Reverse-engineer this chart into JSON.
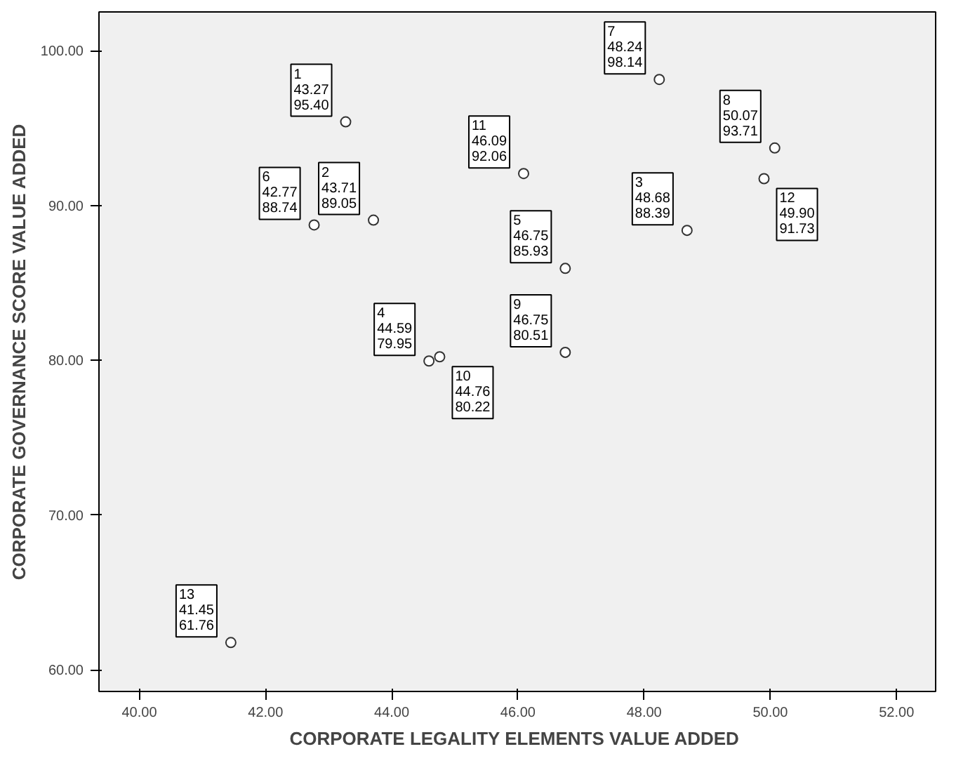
{
  "chart_data": {
    "type": "scatter",
    "xlabel": "CORPORATE LEGALITY  ELEMENTS VALUE ADDED",
    "ylabel": "CORPORATE GOVERNANCE SCORE VALUE ADDED",
    "x": [
      43.27,
      43.71,
      48.68,
      44.59,
      46.75,
      42.77,
      48.24,
      50.07,
      46.75,
      44.76,
      46.09,
      49.9,
      41.45
    ],
    "values": [
      95.4,
      89.05,
      88.39,
      79.95,
      85.93,
      88.74,
      98.14,
      93.71,
      80.51,
      80.22,
      92.06,
      91.73,
      61.76
    ],
    "value_labels": [
      "1\n43.27\n95.40",
      "2\n43.71\n89.05",
      "3\n48.68\n88.39",
      "4\n44.59\n79.95",
      "5\n46.75\n85.93",
      "6\n42.77\n88.74",
      "7\n48.24\n98.14",
      "8\n50.07\n93.71",
      "9\n46.75\n80.51",
      "10\n44.76\n80.22",
      "11\n46.09\n92.06",
      "12\n49.90\n91.73",
      "13\n41.45\n61.76"
    ],
    "color": "#333333",
    "marker": "circle",
    "grid": false,
    "xlim": [
      39.36,
      52.62
    ],
    "ylim": [
      58.6,
      102.5
    ],
    "xticks": [
      {
        "value": 40,
        "label": "40.00"
      },
      {
        "value": 42,
        "label": "42.00"
      },
      {
        "value": 44,
        "label": "44.00"
      },
      {
        "value": 46,
        "label": "46.00"
      },
      {
        "value": 48,
        "label": "48.00"
      },
      {
        "value": 50,
        "label": "50.00"
      },
      {
        "value": 52,
        "label": "52.00"
      }
    ],
    "yticks": [
      {
        "value": 60,
        "label": "60.00"
      },
      {
        "value": 70,
        "label": "70.00"
      },
      {
        "value": 80,
        "label": "80.00"
      },
      {
        "value": 90,
        "label": "90.00"
      },
      {
        "value": 100,
        "label": "100.00"
      }
    ]
  }
}
